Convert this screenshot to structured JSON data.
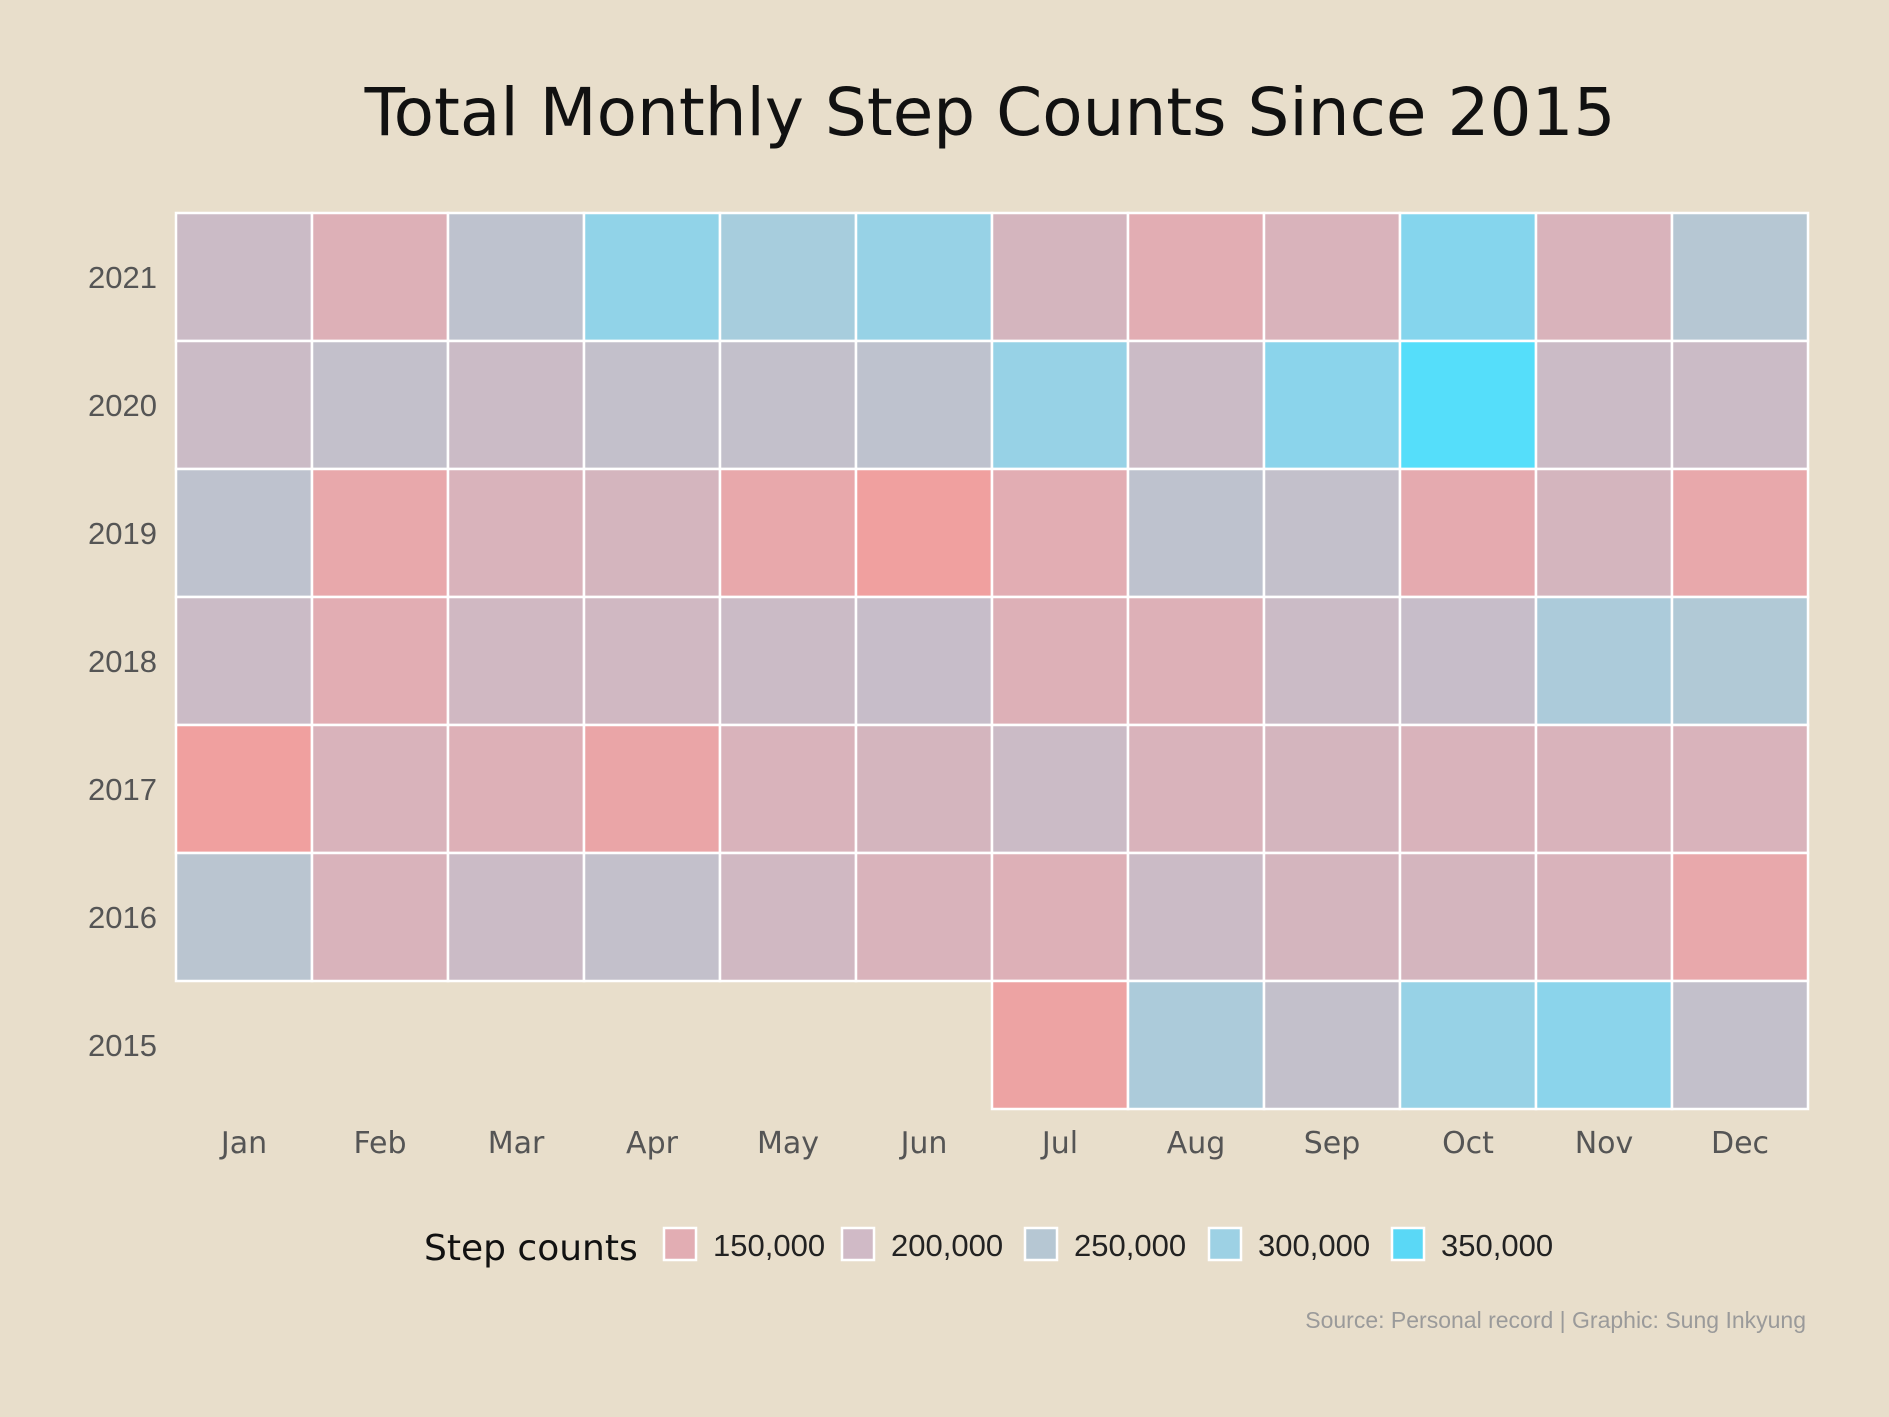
{
  "chart_data": {
    "type": "heatmap",
    "title": "Total Monthly Step Counts Since 2015",
    "x_categories": [
      "Jan",
      "Feb",
      "Mar",
      "Apr",
      "May",
      "Jun",
      "Jul",
      "Aug",
      "Sep",
      "Oct",
      "Nov",
      "Dec"
    ],
    "y_categories": [
      "2021",
      "2020",
      "2019",
      "2018",
      "2017",
      "2016",
      "2015"
    ],
    "values": [
      [
        200000,
        160000,
        230000,
        320000,
        280000,
        310000,
        180000,
        150000,
        170000,
        340000,
        170000,
        250000
      ],
      [
        200000,
        220000,
        200000,
        220000,
        220000,
        230000,
        310000,
        200000,
        330000,
        380000,
        200000,
        200000
      ],
      [
        230000,
        130000,
        170000,
        180000,
        130000,
        100000,
        150000,
        230000,
        220000,
        140000,
        180000,
        130000
      ],
      [
        200000,
        150000,
        190000,
        190000,
        200000,
        210000,
        160000,
        160000,
        200000,
        210000,
        270000,
        260000
      ],
      [
        100000,
        170000,
        160000,
        120000,
        170000,
        180000,
        200000,
        170000,
        180000,
        170000,
        170000,
        170000
      ],
      [
        240000,
        170000,
        200000,
        220000,
        190000,
        170000,
        160000,
        200000,
        180000,
        180000,
        170000,
        130000
      ],
      [
        null,
        null,
        null,
        null,
        null,
        null,
        110000,
        270000,
        220000,
        310000,
        330000,
        220000
      ]
    ],
    "legend": {
      "title": "Step counts",
      "items": [
        {
          "label": "150,000",
          "color": "#e2adb3"
        },
        {
          "label": "200,000",
          "color": "#d0bac6"
        },
        {
          "label": "250,000",
          "color": "#b6c7d3"
        },
        {
          "label": "300,000",
          "color": "#9dd1e4"
        },
        {
          "label": "350,000",
          "color": "#5ad8f6"
        }
      ]
    },
    "color_scale": {
      "stops": [
        {
          "value": 100000,
          "color": "#f0a09f"
        },
        {
          "value": 150000,
          "color": "#e2adb3"
        },
        {
          "value": 200000,
          "color": "#cbbbc6"
        },
        {
          "value": 250000,
          "color": "#b6c7d3"
        },
        {
          "value": 300000,
          "color": "#9dd1e4"
        },
        {
          "value": 350000,
          "color": "#7fd6ef"
        },
        {
          "value": 380000,
          "color": "#55defa"
        }
      ]
    },
    "source": "Source: Personal record | Graphic: Sung Inkyung",
    "background": "#e8decb"
  }
}
